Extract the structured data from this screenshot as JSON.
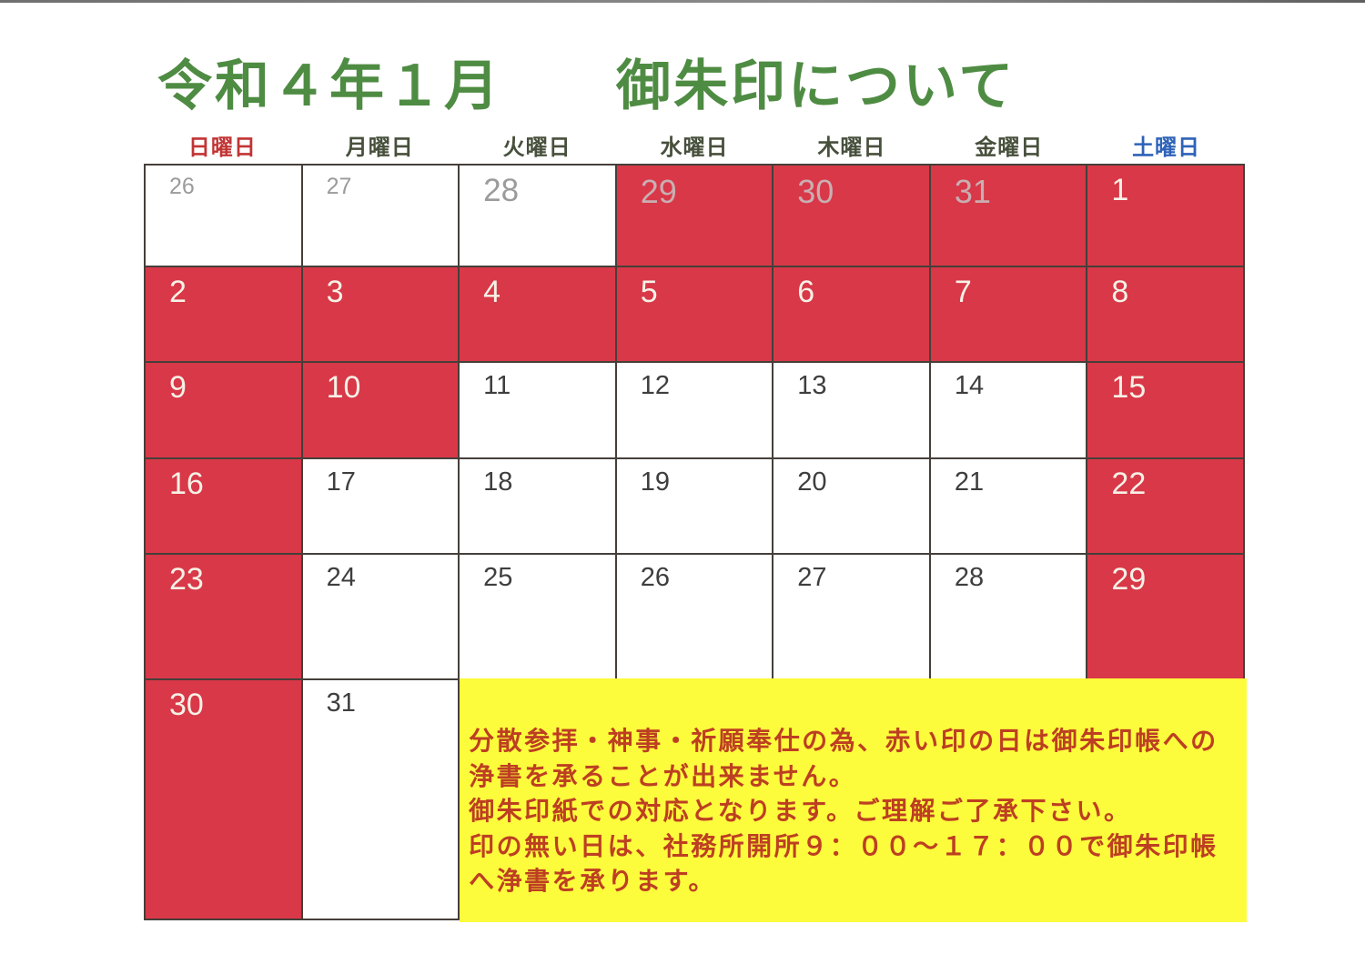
{
  "title": "令和４年１月　　御朱印について",
  "colors": {
    "title": "#4f8c43",
    "closed_bg": "#d83848",
    "closed_num": "#f6f1e6",
    "closed_prev_num": "#c9aeb2",
    "prev_num": "#9b9b9b",
    "open_num": "#3e3e3e",
    "grid_line": "#453f3a",
    "note_bg": "#fcfc3c",
    "note_text": "#bd3f22",
    "sunday_header": "#c23434",
    "weekday_header": "#47503c",
    "saturday_header": "#2e62b8"
  },
  "weekday_headers": [
    {
      "label": "日曜日",
      "color": "#c23434"
    },
    {
      "label": "月曜日",
      "color": "#47503c"
    },
    {
      "label": "火曜日",
      "color": "#47503c"
    },
    {
      "label": "水曜日",
      "color": "#47503c"
    },
    {
      "label": "木曜日",
      "color": "#47503c"
    },
    {
      "label": "金曜日",
      "color": "#47503c"
    },
    {
      "label": "土曜日",
      "color": "#2e62b8"
    }
  ],
  "calendar": {
    "era_month": "令和４年１月",
    "rows": [
      {
        "cells": [
          {
            "day": "26",
            "status": "prev-month"
          },
          {
            "day": "27",
            "status": "prev-month"
          },
          {
            "day": "28",
            "status": "prev-month"
          },
          {
            "day": "29",
            "status": "prev-month-closed"
          },
          {
            "day": "30",
            "status": "prev-month-closed"
          },
          {
            "day": "31",
            "status": "prev-month-closed"
          },
          {
            "day": "1",
            "status": "closed"
          }
        ]
      },
      {
        "cells": [
          {
            "day": "2",
            "status": "closed"
          },
          {
            "day": "3",
            "status": "closed"
          },
          {
            "day": "4",
            "status": "closed"
          },
          {
            "day": "5",
            "status": "closed"
          },
          {
            "day": "6",
            "status": "closed"
          },
          {
            "day": "7",
            "status": "closed"
          },
          {
            "day": "8",
            "status": "closed"
          }
        ]
      },
      {
        "cells": [
          {
            "day": "9",
            "status": "closed"
          },
          {
            "day": "10",
            "status": "closed"
          },
          {
            "day": "11",
            "status": "open"
          },
          {
            "day": "12",
            "status": "open"
          },
          {
            "day": "13",
            "status": "open"
          },
          {
            "day": "14",
            "status": "open"
          },
          {
            "day": "15",
            "status": "closed"
          }
        ]
      },
      {
        "cells": [
          {
            "day": "16",
            "status": "closed"
          },
          {
            "day": "17",
            "status": "open"
          },
          {
            "day": "18",
            "status": "open"
          },
          {
            "day": "19",
            "status": "open"
          },
          {
            "day": "20",
            "status": "open"
          },
          {
            "day": "21",
            "status": "open"
          },
          {
            "day": "22",
            "status": "closed"
          }
        ]
      },
      {
        "cells": [
          {
            "day": "23",
            "status": "closed"
          },
          {
            "day": "24",
            "status": "open"
          },
          {
            "day": "25",
            "status": "open"
          },
          {
            "day": "26",
            "status": "open"
          },
          {
            "day": "27",
            "status": "open"
          },
          {
            "day": "28",
            "status": "open"
          },
          {
            "day": "29",
            "status": "closed"
          }
        ]
      },
      {
        "cells": [
          {
            "day": "30",
            "status": "closed"
          },
          {
            "day": "31",
            "status": "open"
          }
        ]
      }
    ]
  },
  "note": {
    "lines": [
      "分散参拝・神事・祈願奉仕の為、赤い印の日は御朱印帳への",
      "浄書を承ることが出来ません。",
      "御朱印紙での対応となります。ご理解ご了承下さい。",
      "印の無い日は、社務所開所９：００～１７：００で御朱印帳",
      "へ浄書を承ります。"
    ]
  }
}
